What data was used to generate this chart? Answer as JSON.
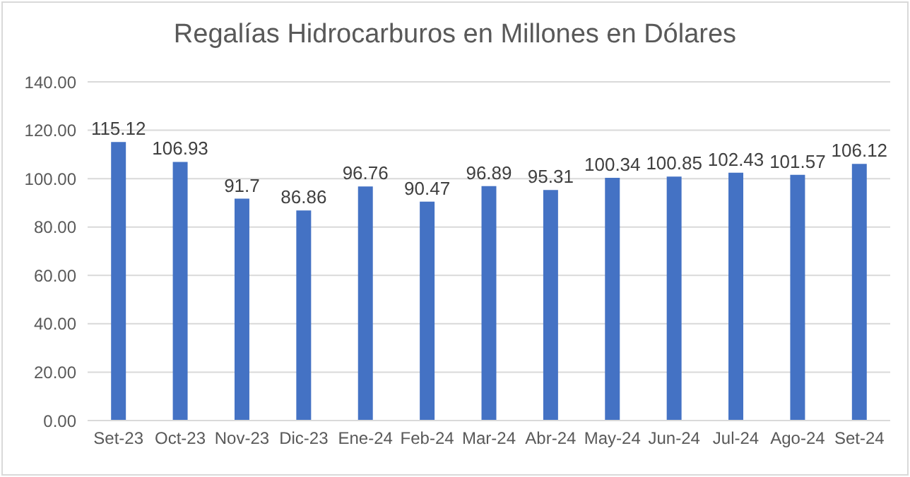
{
  "chart_data": {
    "type": "bar",
    "title": "Regalías Hidrocarburos en Millones en Dólares",
    "categories": [
      "Set-23",
      "Oct-23",
      "Nov-23",
      "Dic-23",
      "Ene-24",
      "Feb-24",
      "Mar-24",
      "Abr-24",
      "May-24",
      "Jun-24",
      "Jul-24",
      "Ago-24",
      "Set-24"
    ],
    "values": [
      115.12,
      106.93,
      91.7,
      86.86,
      96.76,
      90.47,
      96.89,
      95.31,
      100.34,
      100.85,
      102.43,
      101.57,
      106.12
    ],
    "color": "#4472c4",
    "ylim": [
      0,
      140
    ],
    "yticks": [
      {
        "value": 0,
        "label": "0.00"
      },
      {
        "value": 20,
        "label": "20.00"
      },
      {
        "value": 40,
        "label": "40.00"
      },
      {
        "value": 60,
        "label": "60.00"
      },
      {
        "value": 80,
        "label": "80.00"
      },
      {
        "value": 100,
        "label": "100.00"
      },
      {
        "value": 120,
        "label": "120.00"
      },
      {
        "value": 140,
        "label": "140.00"
      }
    ],
    "grid": "y",
    "data_labels": true,
    "legend": false
  }
}
